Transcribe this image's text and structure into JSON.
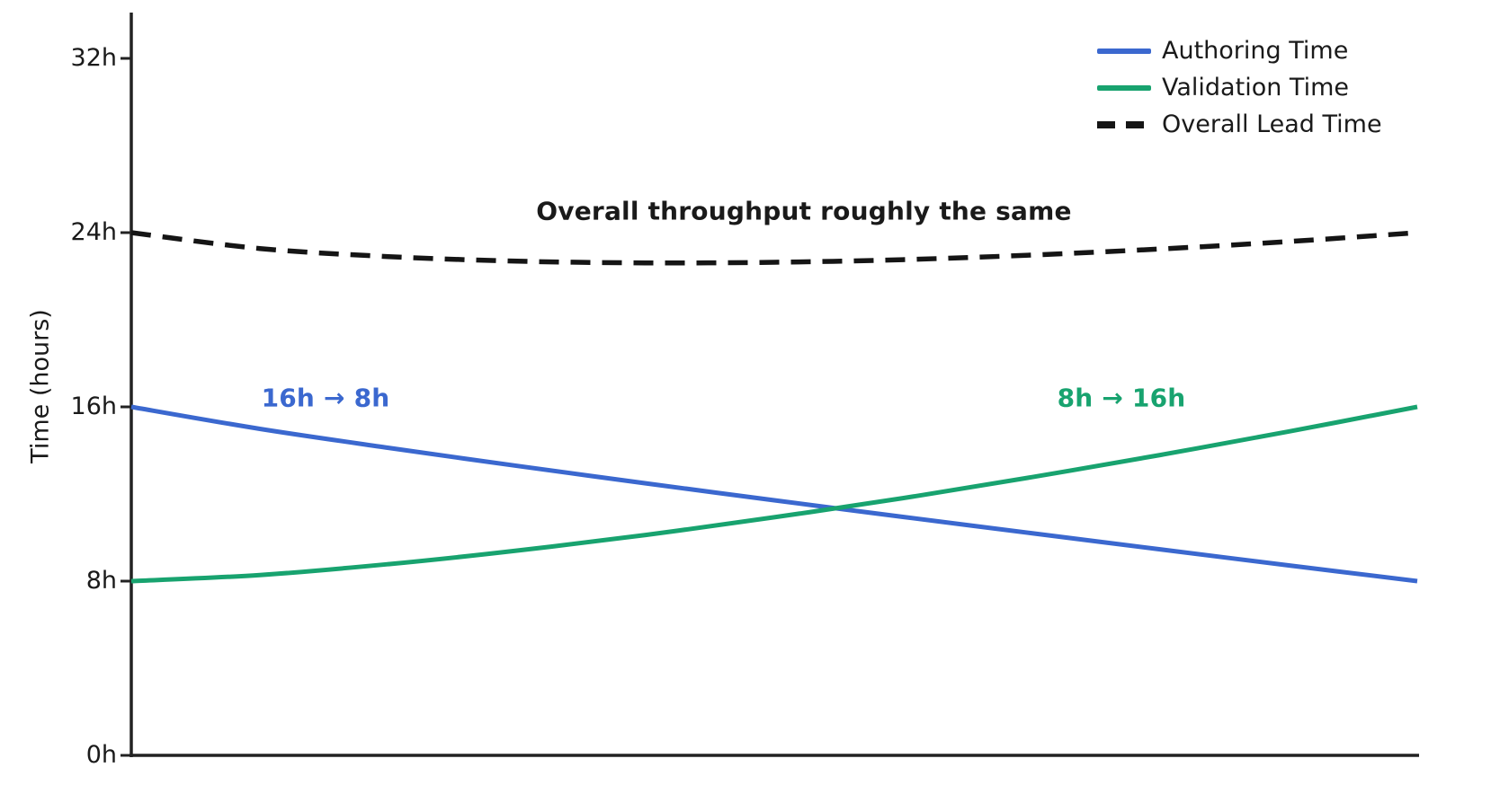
{
  "figure": {
    "background": "#ffffff",
    "text_color": "#1a1a1a",
    "axis_color": "#222222"
  },
  "chart_data": {
    "type": "line",
    "title": "",
    "xlabel": "",
    "ylabel": "Time (hours)",
    "grid": false,
    "legend_position": "upper right",
    "ylim": [
      0,
      34
    ],
    "yticks": [
      {
        "value": 0,
        "label": "0h"
      },
      {
        "value": 8,
        "label": "8h"
      },
      {
        "value": 16,
        "label": "16h"
      },
      {
        "value": 24,
        "label": "24h"
      },
      {
        "value": 32,
        "label": "32h"
      }
    ],
    "x_normalized": [
      0,
      0.1,
      0.2,
      0.3,
      0.4,
      0.5,
      0.6,
      0.7,
      0.8,
      0.9,
      1
    ],
    "series": [
      {
        "name": "Authoring Time",
        "color": "#3b68cf",
        "line_style": "solid",
        "start_hours": 16,
        "end_hours": 8,
        "values": [
          16,
          14.99,
          14.12,
          13.29,
          12.49,
          11.71,
          10.95,
          10.2,
          9.46,
          8.72,
          8
        ]
      },
      {
        "name": "Validation Time",
        "color": "#18a36f",
        "line_style": "solid",
        "start_hours": 8,
        "end_hours": 16,
        "values": [
          8,
          8.28,
          8.78,
          9.4,
          10.12,
          10.93,
          11.81,
          12.77,
          13.79,
          14.87,
          16
        ]
      },
      {
        "name": "Overall Lead Time",
        "color": "#151515",
        "line_style": "dashed",
        "start_hours": 24,
        "end_hours": 24,
        "values": [
          24,
          23.27,
          22.9,
          22.69,
          22.61,
          22.64,
          22.76,
          22.97,
          23.25,
          23.59,
          24
        ]
      }
    ],
    "annotations": [
      {
        "id": "throughput-note",
        "text": "Overall throughput roughly the same",
        "color": "#1a1a1a"
      },
      {
        "id": "authoring-change",
        "text": "16h → 8h",
        "color": "#3b68cf"
      },
      {
        "id": "validation-change",
        "text": "8h → 16h",
        "color": "#18a36f"
      }
    ]
  }
}
